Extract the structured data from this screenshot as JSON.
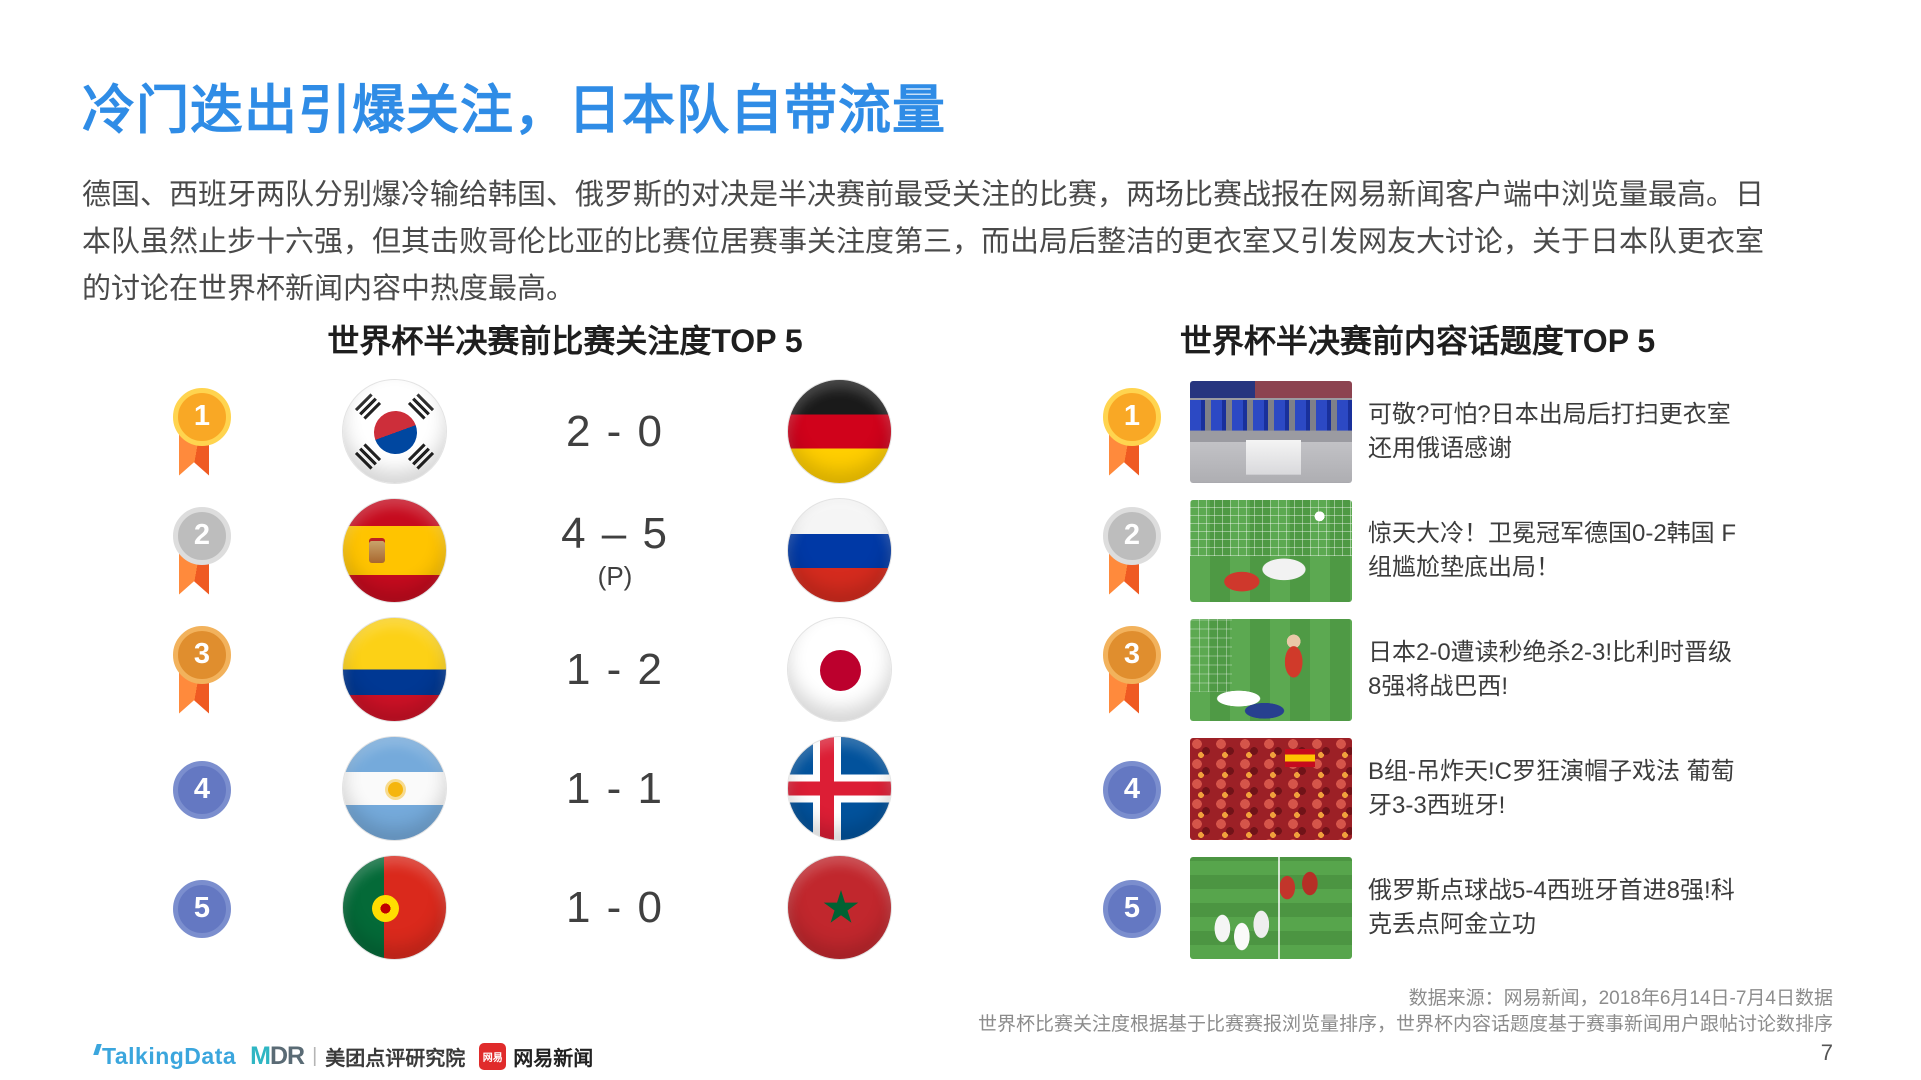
{
  "slide": {
    "title": "冷门迭出引爆关注，日本队自带流量",
    "body_lines": [
      "德国、西班牙两队分别爆冷输给韩国、俄罗斯的对决是半决赛前最受关注的比赛，两场比赛战报在网易新闻客户端中浏览量最高。日",
      "本队虽然止步十六强，但其击败哥伦比亚的比赛位居赛事关注度第三，而出局后整洁的更衣室又引发网友大讨论，关于日本队更衣室",
      "的讨论在世界杯新闻内容中热度最高。"
    ],
    "page_number": "7"
  },
  "match_ranking": {
    "title": "世界杯半决赛前比赛关注度TOP 5",
    "rows": [
      {
        "rank": "1",
        "team1": "flag-south-korea",
        "score": "2 - 0",
        "note": "",
        "team2": "flag-germany"
      },
      {
        "rank": "2",
        "team1": "flag-spain",
        "score": "4 – 5",
        "note": "(P)",
        "team2": "flag-russia"
      },
      {
        "rank": "3",
        "team1": "flag-colombia",
        "score": "1 - 2",
        "note": "",
        "team2": "flag-japan"
      },
      {
        "rank": "4",
        "team1": "flag-argentina",
        "score": "1 - 1",
        "note": "",
        "team2": "flag-iceland"
      },
      {
        "rank": "5",
        "team1": "flag-portugal",
        "score": "1 - 0",
        "note": "",
        "team2": "flag-morocco"
      }
    ]
  },
  "topic_ranking": {
    "title": "世界杯半决赛前内容话题度TOP 5",
    "rows": [
      {
        "rank": "1",
        "thumbnail": "japan-locker-room-photo",
        "headline": "可敬?可怕?日本出局后打扫更衣室 还用俄语感谢"
      },
      {
        "rank": "2",
        "thumbnail": "germany-korea-goal-photo",
        "headline": "惊天大冷！卫冕冠军德国0-2韩国 F组尴尬垫底出局！"
      },
      {
        "rank": "3",
        "thumbnail": "japan-belgium-match-photo",
        "headline": "日本2-0遭读秒绝杀2-3!比利时晋级8强将战巴西!"
      },
      {
        "rank": "4",
        "thumbnail": "portugal-spain-fans-photo",
        "headline": "B组-吊炸天!C罗狂演帽子戏法 葡萄牙3-3西班牙!"
      },
      {
        "rank": "5",
        "thumbnail": "russia-spain-penalties-photo",
        "headline": "俄罗斯点球战5-4西班牙首进8强!科克丢点阿金立功"
      }
    ]
  },
  "footer": {
    "source_line1": "数据来源：网易新闻，2018年6月14日-7月4日数据",
    "source_line2": "世界杯比赛关注度根据基于比赛赛报浏览量排序，世界杯内容话题度基于赛事新闻用户跟帖讨论数排序",
    "logos": {
      "talkingdata": "TalkingData",
      "mdr_m": "M",
      "mdr_dr": "DR",
      "divider": "|",
      "meituan": "美团点评研究院",
      "netease_badge": "网易",
      "netease": "网易新闻"
    }
  },
  "colors": {
    "title_blue": "#2F8CE6",
    "medal_gold": "#F9A825",
    "medal_silver": "#BDBDBD",
    "medal_bronze": "#E08E2E",
    "rank_blue": "#6478C2",
    "ribbon_orange": "#EF5A22"
  }
}
